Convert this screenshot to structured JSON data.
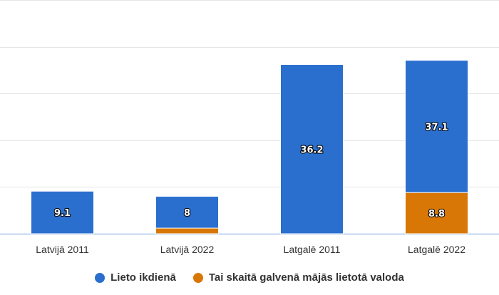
{
  "chart_data": {
    "type": "bar",
    "stacked": false,
    "categories": [
      "Latvijā 2011",
      "Latvijā 2022",
      "Latgalē 2011",
      "Latgalē 2022"
    ],
    "series": [
      {
        "name": "Lieto ikdienā",
        "values": [
          9.1,
          8,
          36.2,
          37.1
        ],
        "color": "#2b6fce",
        "show_labels": true
      },
      {
        "name": "Tai skaitā galvenā mājās lietotā valoda",
        "values": [
          null,
          1.2,
          null,
          8.8
        ],
        "color": "#d97706",
        "show_labels": [
          false,
          false,
          false,
          true
        ]
      }
    ],
    "ylim": [
      0,
      50
    ],
    "grid": true,
    "legend_position": "bottom"
  }
}
